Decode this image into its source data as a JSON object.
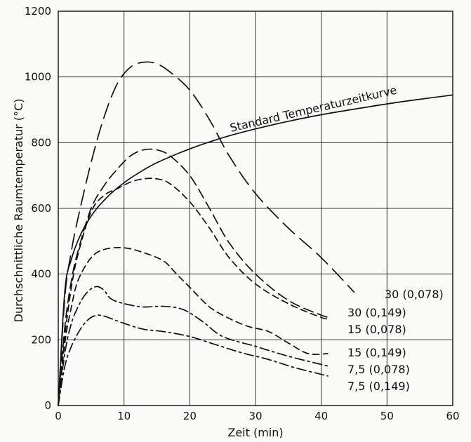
{
  "chart_data": {
    "type": "line",
    "xlabel": "Zeit (min)",
    "ylabel": "Durchschnittliche Raumtemperatur (°C)",
    "xlim": [
      0,
      60
    ],
    "ylim": [
      0,
      1200
    ],
    "x_ticks": [
      "0",
      "10",
      "20",
      "30",
      "40",
      "50",
      "60"
    ],
    "y_ticks": [
      "0",
      "200",
      "400",
      "600",
      "800",
      "1000",
      "1200"
    ],
    "grid": true,
    "legend": "inline labels at right end of curves",
    "series": [
      {
        "name": "Standard Temperaturzeitkurve",
        "style": "solid",
        "label_position": "along-curve",
        "x": [
          0,
          1,
          2,
          3,
          4,
          5,
          6,
          8,
          10,
          12,
          15,
          20,
          25,
          30,
          35,
          40,
          45,
          50,
          55,
          60
        ],
        "y": [
          0,
          349,
          445,
          502,
          544,
          576,
          603,
          645,
          678,
          705,
          739,
          781,
          815,
          842,
          865,
          885,
          902,
          918,
          932,
          945
        ]
      },
      {
        "name": "30 (0,078)",
        "style": "long-dash",
        "x": [
          0,
          1,
          2,
          3,
          5,
          7,
          9,
          11,
          13,
          15,
          17,
          20,
          23,
          26,
          30,
          35,
          40,
          45
        ],
        "y": [
          0,
          330,
          470,
          570,
          740,
          880,
          980,
          1030,
          1045,
          1040,
          1015,
          960,
          870,
          760,
          645,
          540,
          450,
          345
        ]
      },
      {
        "name": "30 (0,149)",
        "style": "dash",
        "x": [
          0,
          1,
          2,
          3,
          5,
          7,
          9,
          11,
          13,
          15,
          17,
          20,
          23,
          26,
          30,
          35,
          40,
          41
        ],
        "y": [
          0,
          240,
          380,
          470,
          600,
          670,
          720,
          760,
          778,
          778,
          760,
          700,
          600,
          495,
          400,
          320,
          275,
          270
        ]
      },
      {
        "name": "15 (0,078)",
        "style": "short-dash",
        "x": [
          0,
          1,
          2,
          3,
          5,
          7,
          9,
          11,
          13,
          15,
          17,
          20,
          23,
          26,
          30,
          35,
          40,
          41
        ],
        "y": [
          0,
          210,
          360,
          460,
          590,
          640,
          660,
          680,
          690,
          690,
          675,
          620,
          540,
          450,
          370,
          310,
          268,
          265
        ]
      },
      {
        "name": "15 (0,149)",
        "style": "short-dash",
        "x": [
          0,
          1,
          2,
          3,
          5,
          7,
          10,
          13,
          16,
          18,
          20,
          23,
          26,
          29,
          32,
          35,
          38,
          41
        ],
        "y": [
          0,
          190,
          300,
          380,
          450,
          475,
          480,
          465,
          440,
          400,
          360,
          300,
          265,
          240,
          225,
          190,
          158,
          158
        ]
      },
      {
        "name": "7,5 (0,078)",
        "style": "dash-dot",
        "x": [
          0,
          1,
          2,
          3,
          4,
          5,
          6,
          7,
          8,
          10,
          13,
          16,
          19,
          22,
          25,
          30,
          35,
          41
        ],
        "y": [
          0,
          160,
          250,
          300,
          335,
          355,
          362,
          350,
          325,
          310,
          300,
          302,
          292,
          255,
          210,
          180,
          150,
          120
        ]
      },
      {
        "name": "7,5 (0,149)",
        "style": "dash-dot",
        "x": [
          0,
          1,
          2,
          3,
          4,
          5,
          6,
          7,
          8,
          10,
          13,
          16,
          20,
          24,
          28,
          32,
          36,
          41
        ],
        "y": [
          0,
          120,
          180,
          220,
          250,
          268,
          275,
          272,
          265,
          250,
          232,
          225,
          210,
          185,
          160,
          140,
          115,
          90
        ]
      }
    ]
  }
}
